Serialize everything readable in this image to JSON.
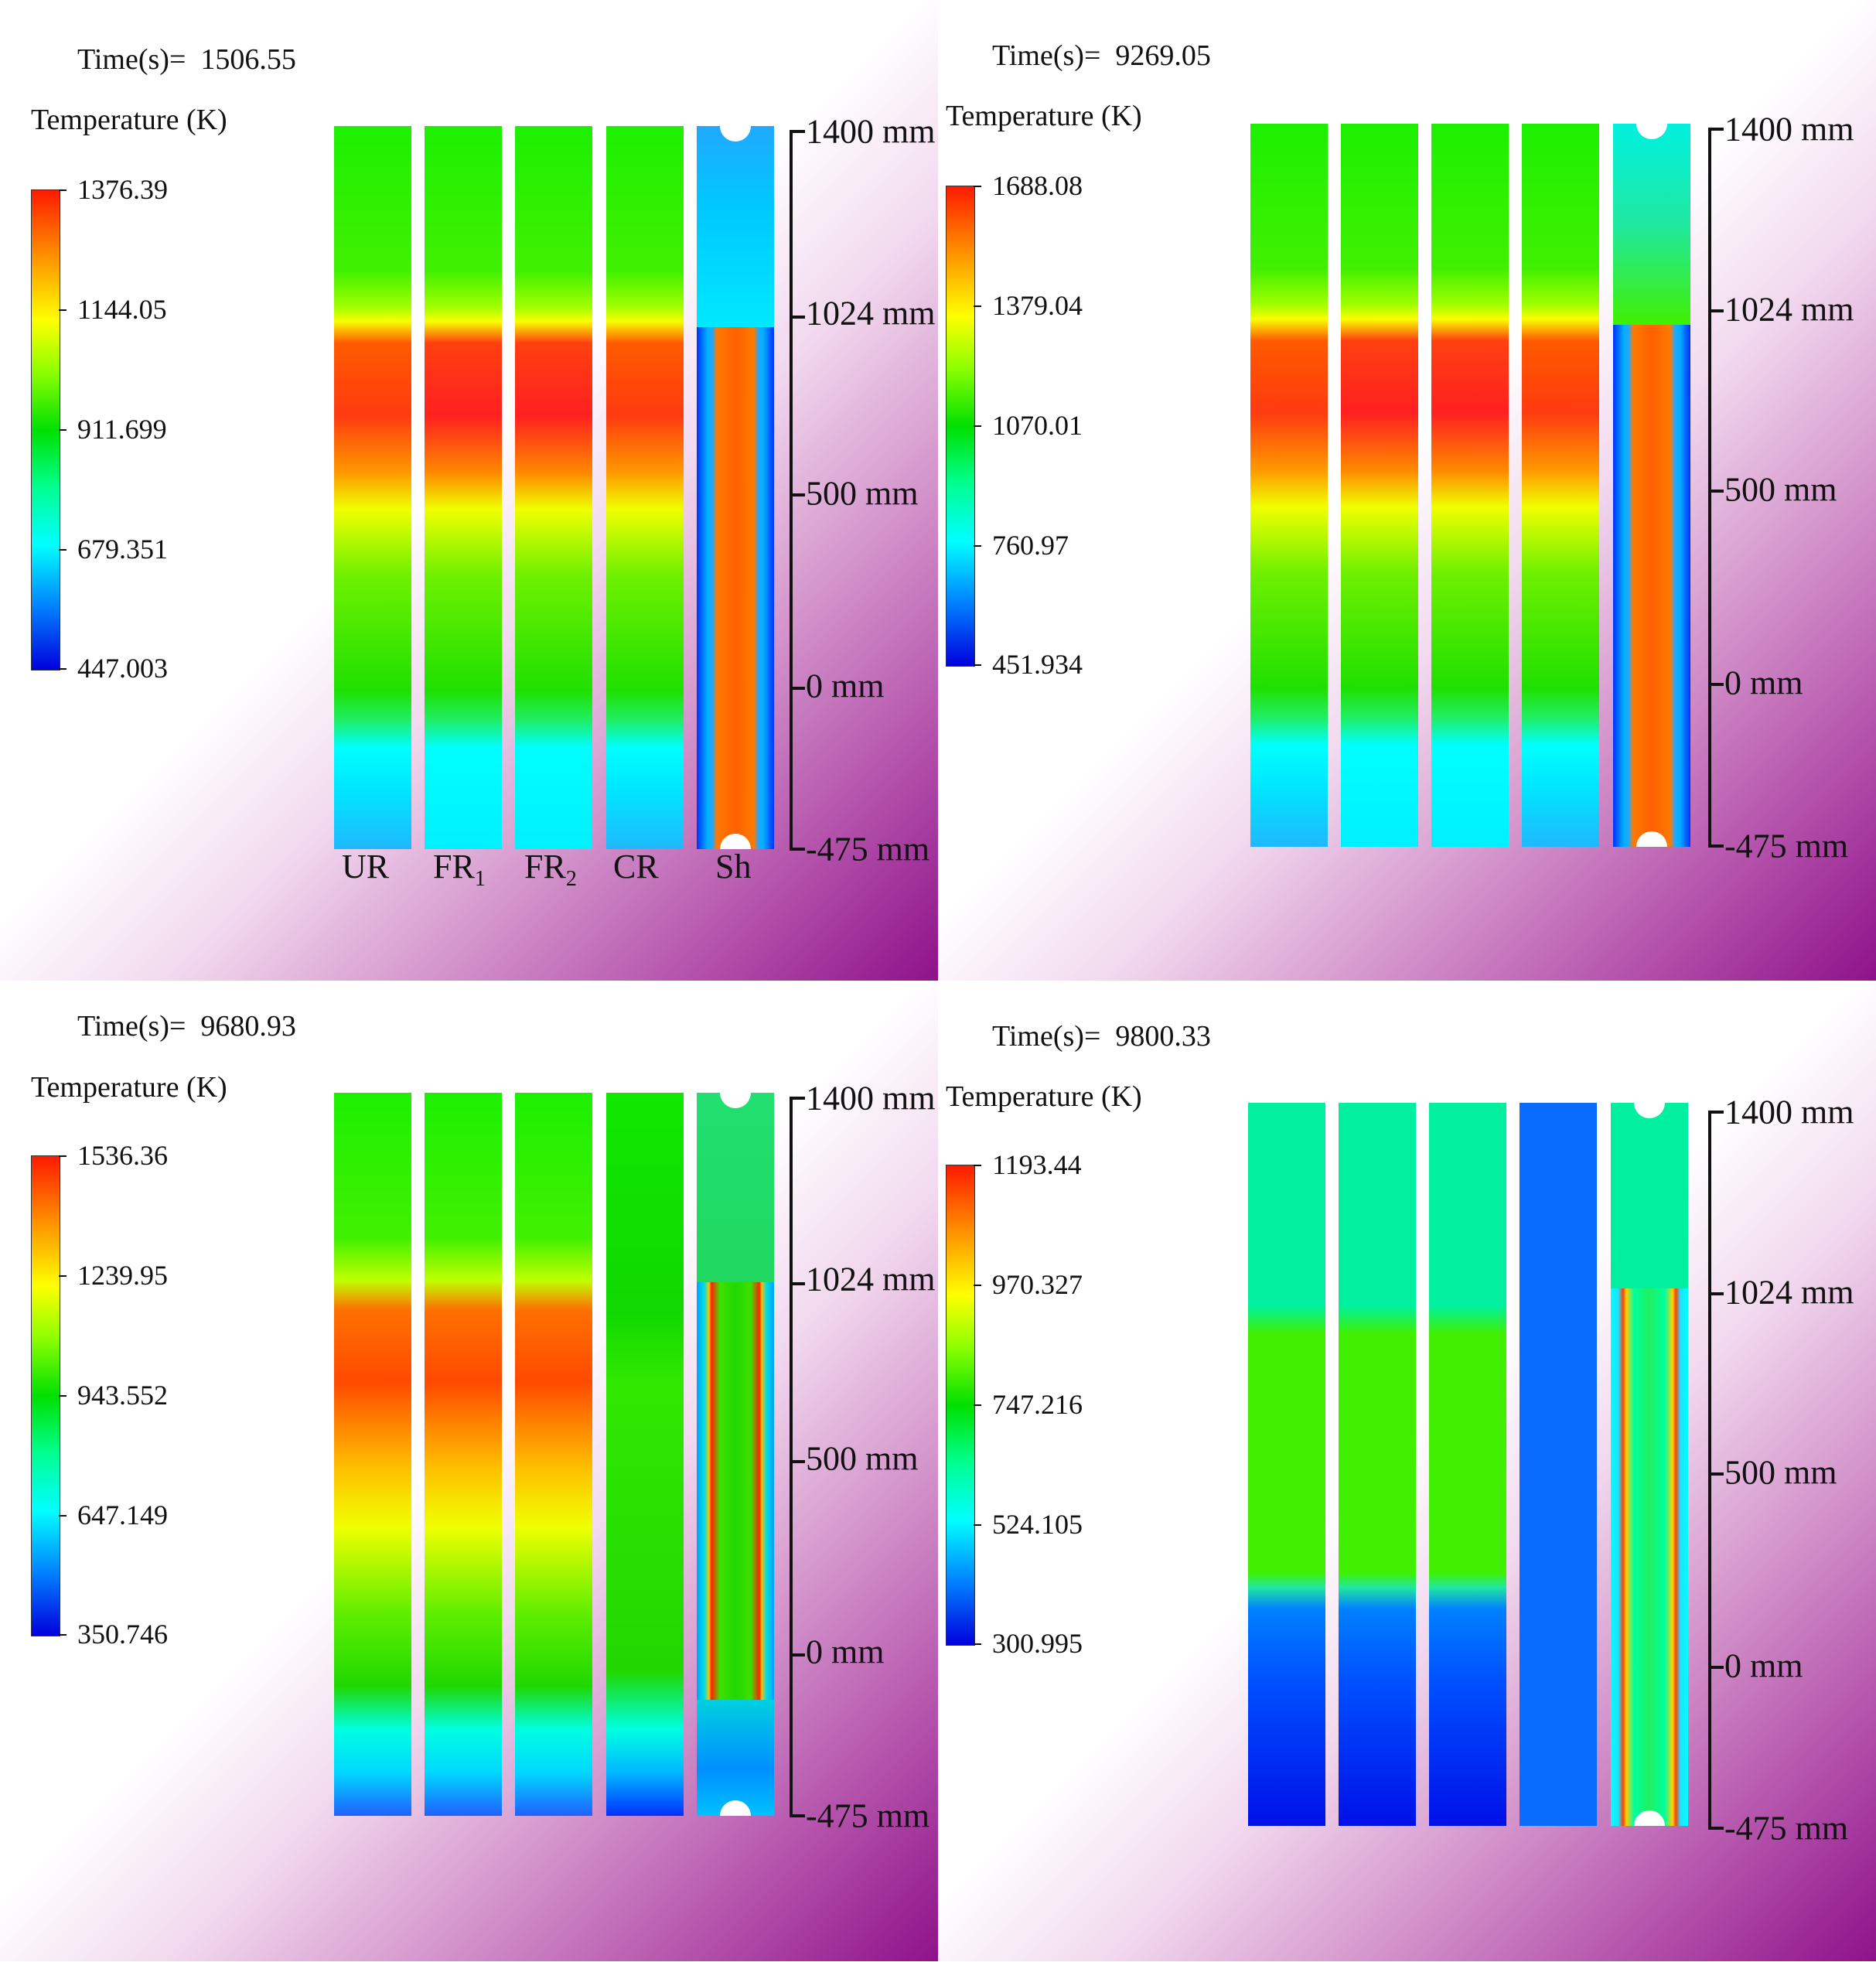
{
  "panels": [
    {
      "time_label": "Time(s)=",
      "time_value": "1506.55",
      "legend_title": "Temperature (K)",
      "legend_values": [
        "1376.39",
        "1144.05",
        "911.699",
        "679.351",
        "447.003"
      ]
    },
    {
      "time_label": "Time(s)=",
      "time_value": "9269.05",
      "legend_title": "Temperature (K)",
      "legend_values": [
        "1688.08",
        "1379.04",
        "1070.01",
        "760.97",
        "451.934"
      ]
    },
    {
      "time_label": "Time(s)=",
      "time_value": "9680.93",
      "legend_title": "Temperature (K)",
      "legend_values": [
        "1536.36",
        "1239.95",
        "943.552",
        "647.149",
        "350.746"
      ]
    },
    {
      "time_label": "Time(s)=",
      "time_value": "9800.33",
      "legend_title": "Temperature (K)",
      "legend_values": [
        "1193.44",
        "970.327",
        "747.216",
        "524.105",
        "300.995"
      ]
    }
  ],
  "scale_labels": [
    "1400 mm",
    "1024 mm",
    "500 mm",
    "0 mm",
    "-475 mm"
  ],
  "rod_labels": {
    "ur": "UR",
    "fr1": "FR",
    "fr1_sub": "1",
    "fr2": "FR",
    "fr2_sub": "2",
    "cr": "CR",
    "sh": "Sh"
  },
  "colors": {
    "bg_corner": "#8e128a",
    "scale_line": "#111111"
  }
}
